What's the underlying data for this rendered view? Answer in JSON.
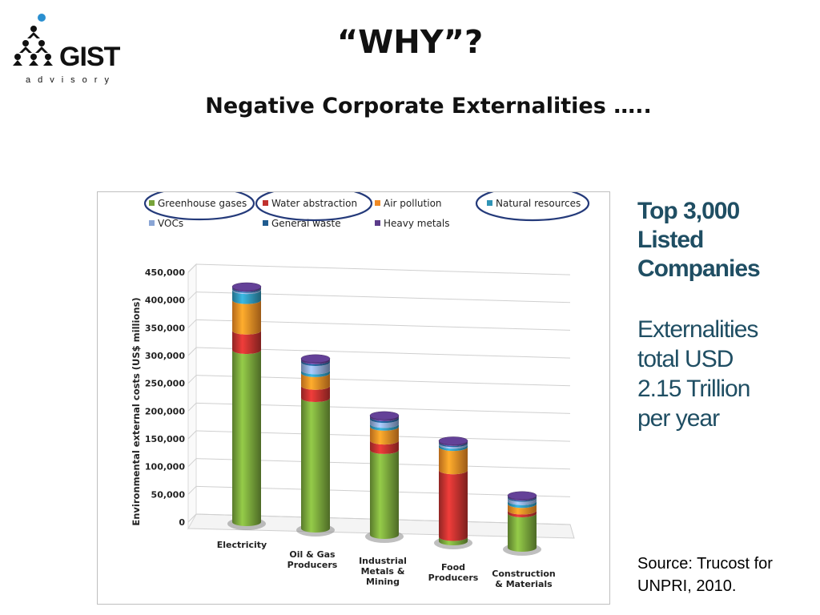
{
  "header": {
    "logo_text": "GIST",
    "logo_sub": "advisory",
    "title": "“WHY”?",
    "subtitle": "Negative Corporate Externalities ….."
  },
  "side_panel": {
    "heading_lines": [
      "Top 3,000",
      "Listed",
      "Companies"
    ],
    "body_lines": [
      "Externalities",
      "total USD",
      "2.15 Trillion",
      "per year"
    ],
    "source_lines": [
      "Source: Trucost for",
      "UNPRI, 2010."
    ]
  },
  "chart_data": {
    "type": "bar",
    "stacked": true,
    "style": "3d-cylinder",
    "ylabel": "Environmental external costs  (US$ millions)",
    "ylim": [
      0,
      450000
    ],
    "yticks": [
      0,
      50000,
      100000,
      150000,
      200000,
      250000,
      300000,
      350000,
      400000,
      450000
    ],
    "ytick_labels": [
      "0",
      "50,000",
      "100,000",
      "150,000",
      "200,000",
      "250,000",
      "300,000",
      "350,000",
      "400,000",
      "450,000"
    ],
    "grid": true,
    "legend_position": "top",
    "categories": [
      [
        "Electricity"
      ],
      [
        "Oil & Gas",
        "Producers"
      ],
      [
        "Industrial",
        "Metals &",
        "Mining"
      ],
      [
        "Food",
        "Producers"
      ],
      [
        "Construction",
        "& Materials"
      ]
    ],
    "series": [
      {
        "name": "Greenhouse gases",
        "color": "#77a33a",
        "values": [
          310000,
          235000,
          153000,
          8000,
          62000
        ]
      },
      {
        "name": "Water abstraction",
        "color": "#c0312e",
        "values": [
          35000,
          22000,
          17000,
          120000,
          5000
        ]
      },
      {
        "name": "Air pollution",
        "color": "#f08a24",
        "values": [
          55000,
          23000,
          25000,
          42000,
          12000
        ]
      },
      {
        "name": "Natural resources",
        "color": "#2f94b6",
        "values": [
          18000,
          5000,
          5000,
          4000,
          5000
        ]
      },
      {
        "name": "VOCs",
        "color": "#8aa5d5",
        "values": [
          2000,
          15000,
          9000,
          3000,
          6000
        ]
      },
      {
        "name": "General waste",
        "color": "#1f5b8f",
        "values": [
          2000,
          3000,
          3000,
          2000,
          2000
        ]
      },
      {
        "name": "Heavy metals",
        "color": "#5b3b8a",
        "values": [
          2000,
          3000,
          3000,
          2000,
          2000
        ]
      }
    ],
    "highlighted_series": [
      "Greenhouse gases",
      "Water abstraction",
      "Natural resources"
    ]
  }
}
